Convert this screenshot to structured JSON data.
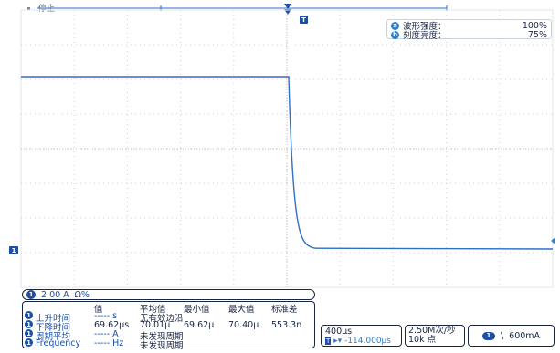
{
  "top": {
    "status_text": "停止"
  },
  "markers": {
    "trigger_badge": "T",
    "channel_badge": "1"
  },
  "info_box": {
    "rows": [
      {
        "badge": "a",
        "label": "波形强度：",
        "value": "100%"
      },
      {
        "badge": "b",
        "label": "刻度亮度：",
        "value": "75%"
      }
    ]
  },
  "channel_strip": {
    "badge": "1",
    "scale": "2.00 A",
    "coupling": "Ω%"
  },
  "measurements": {
    "headers": [
      "值",
      "平均值",
      "最小值",
      "最大值",
      "标准差"
    ],
    "rows": [
      {
        "badge": "1",
        "name": "上升时间",
        "value": "-----.s",
        "avg": "无有效边沿",
        "min": "",
        "max": "",
        "std": "",
        "color": "#1d4ea0"
      },
      {
        "badge": "1",
        "name": "下降时间",
        "value": "69.62μs",
        "avg": "70.01μ",
        "min": "69.62μ",
        "max": "70.40μ",
        "std": "553.3n",
        "color": "#1d4ea0"
      },
      {
        "badge": "1",
        "name": "周期平均",
        "value": "-----.A",
        "avg": "未发现周期",
        "min": "",
        "max": "",
        "std": "",
        "color": "#1d4ea0"
      },
      {
        "badge": "1",
        "name": "Frequency",
        "value": "-----.Hz",
        "avg": "未发现周期",
        "min": "",
        "max": "",
        "std": "",
        "color": "#1d4ea0"
      }
    ]
  },
  "timebase": {
    "scale": "400μs",
    "offset": "-114.000μs"
  },
  "acquisition": {
    "rate": "2.50M次/秒",
    "points": "10k 点"
  },
  "trigger": {
    "badge": "1",
    "slope_symbol": "\\",
    "level": "600mA"
  },
  "colors": {
    "trace": "#2f6fc4",
    "accent": "#1d4ea0",
    "grid": "#c9d1dc"
  }
}
